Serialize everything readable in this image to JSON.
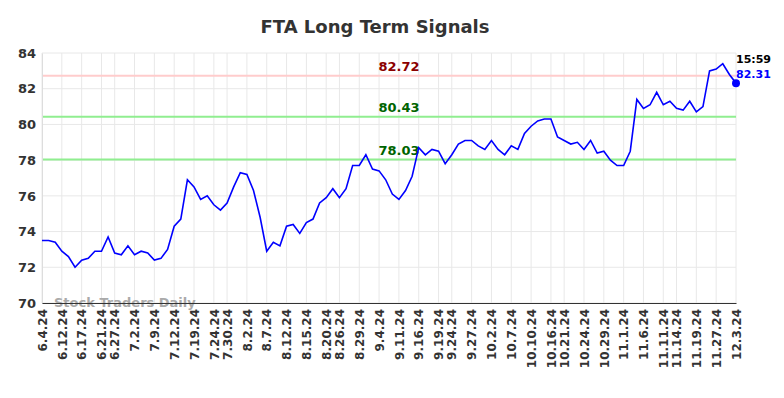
{
  "chart_data": {
    "type": "line",
    "title": "FTA Long Term Signals",
    "watermark": "Stock Traders Daily",
    "end_time": "15:59",
    "color": "#0000ff",
    "grid": true,
    "categories": [
      "6.4.24",
      null,
      null,
      "6.12.24",
      null,
      null,
      "6.17.24",
      null,
      null,
      "6.21.24",
      null,
      "6.27.24",
      null,
      null,
      "7.2.24",
      null,
      null,
      "7.9.24",
      null,
      null,
      "7.12.24",
      null,
      null,
      "7.19.24",
      null,
      null,
      "7.24.24",
      null,
      "7.30.24",
      null,
      null,
      "8.2.24",
      null,
      null,
      "8.7.24",
      null,
      null,
      "8.12.24",
      null,
      null,
      "8.15.24",
      null,
      null,
      "8.20.24",
      null,
      "8.26.24",
      null,
      null,
      "8.29.24",
      null,
      null,
      "9.4.24",
      null,
      null,
      "9.11.24",
      null,
      null,
      "9.16.24",
      null,
      null,
      "9.19.24",
      null,
      "9.24.24",
      null,
      null,
      "9.27.24",
      null,
      null,
      "10.2.24",
      null,
      null,
      "10.7.24",
      null,
      null,
      "10.10.24",
      null,
      null,
      "10.16.24",
      null,
      "10.21.24",
      null,
      null,
      "10.24.24",
      null,
      null,
      "10.29.24",
      null,
      null,
      "11.1.24",
      null,
      null,
      "11.6.24",
      null,
      null,
      "11.11.24",
      null,
      "11.14.24",
      null,
      null,
      "11.19.24",
      null,
      null,
      "11.27.24",
      null,
      null,
      "12.3.24"
    ],
    "values": [
      73.5,
      73.5,
      73.4,
      72.9,
      72.6,
      72.0,
      72.4,
      72.5,
      72.9,
      72.9,
      73.7,
      72.8,
      72.7,
      73.2,
      72.7,
      72.9,
      72.8,
      72.4,
      72.5,
      73.0,
      74.3,
      74.7,
      76.9,
      76.5,
      75.8,
      76.0,
      75.5,
      75.2,
      75.6,
      76.5,
      77.3,
      77.2,
      76.3,
      74.8,
      72.9,
      73.4,
      73.2,
      74.3,
      74.4,
      73.9,
      74.5,
      74.7,
      75.6,
      75.9,
      76.4,
      75.9,
      76.4,
      77.7,
      77.7,
      78.3,
      77.5,
      77.4,
      76.9,
      76.1,
      75.8,
      76.3,
      77.1,
      78.7,
      78.3,
      78.6,
      78.5,
      77.8,
      78.3,
      78.9,
      79.1,
      79.1,
      78.8,
      78.6,
      79.1,
      78.6,
      78.3,
      78.8,
      78.6,
      79.5,
      79.9,
      80.2,
      80.3,
      80.3,
      79.3,
      79.1,
      78.9,
      79.0,
      78.6,
      79.1,
      78.4,
      78.5,
      78.0,
      77.7,
      77.7,
      78.5,
      81.4,
      80.9,
      81.1,
      81.8,
      81.1,
      81.3,
      80.9,
      80.8,
      81.3,
      80.7,
      81.0,
      83.0,
      83.1,
      83.4,
      82.8,
      82.31
    ],
    "reference_lines": [
      {
        "value": 82.72,
        "color": "#ffcccc",
        "text_color": "#8b0000"
      },
      {
        "value": 80.43,
        "color": "#90ee90",
        "text_color": "#006400"
      },
      {
        "value": 78.03,
        "color": "#90ee90",
        "text_color": "#006400"
      }
    ],
    "ylim": [
      70,
      84
    ],
    "yticks": [
      70,
      72,
      74,
      76,
      78,
      80,
      82,
      84
    ]
  }
}
